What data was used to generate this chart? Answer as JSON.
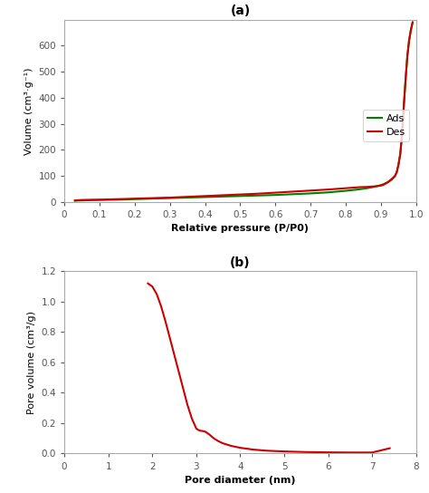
{
  "panel_a": {
    "title": "(a)",
    "xlabel": "Relative pressure (P/P0)",
    "ylabel": "Volume (cm³·g⁻¹)",
    "xlim": [
      0,
      1.0
    ],
    "ylim": [
      0,
      700
    ],
    "yticks": [
      0,
      100,
      200,
      300,
      400,
      500,
      600
    ],
    "xticks": [
      0,
      0.1,
      0.2,
      0.3,
      0.4,
      0.5,
      0.6,
      0.7,
      0.8,
      0.9,
      1.0
    ],
    "ads_color": "#008000",
    "des_color": "#cc0000",
    "ads_label": "Ads",
    "des_label": "Des",
    "line_width": 1.5,
    "ads_x": [
      0.03,
      0.05,
      0.1,
      0.15,
      0.18,
      0.2,
      0.25,
      0.3,
      0.35,
      0.4,
      0.45,
      0.5,
      0.55,
      0.6,
      0.65,
      0.7,
      0.75,
      0.8,
      0.82,
      0.84,
      0.86,
      0.88,
      0.9,
      0.91,
      0.92,
      0.93,
      0.94,
      0.945,
      0.95,
      0.955,
      0.96,
      0.965,
      0.97,
      0.975,
      0.98,
      0.985,
      0.99
    ],
    "ads_y": [
      5,
      6,
      8,
      9,
      10,
      11,
      13,
      15,
      17,
      19,
      21,
      23,
      25,
      27,
      30,
      33,
      37,
      43,
      46,
      49,
      53,
      58,
      65,
      70,
      77,
      85,
      100,
      115,
      145,
      185,
      260,
      370,
      470,
      560,
      620,
      660,
      690
    ],
    "des_x": [
      0.99,
      0.985,
      0.98,
      0.975,
      0.97,
      0.965,
      0.96,
      0.955,
      0.95,
      0.945,
      0.94,
      0.93,
      0.925,
      0.92,
      0.915,
      0.91,
      0.905,
      0.9,
      0.895,
      0.89,
      0.88,
      0.87,
      0.86,
      0.84,
      0.82,
      0.8,
      0.75,
      0.7,
      0.65,
      0.6,
      0.55,
      0.5,
      0.45,
      0.4,
      0.35,
      0.3,
      0.25,
      0.2,
      0.18,
      0.15,
      0.1,
      0.05,
      0.03
    ],
    "des_y": [
      690,
      660,
      620,
      560,
      470,
      370,
      260,
      185,
      145,
      115,
      100,
      88,
      82,
      76,
      72,
      68,
      65,
      63,
      62,
      61,
      60,
      59,
      58,
      57,
      55,
      53,
      48,
      44,
      40,
      36,
      32,
      29,
      26,
      23,
      20,
      17,
      15,
      13,
      12,
      11,
      9,
      8,
      6
    ]
  },
  "panel_b": {
    "title": "(b)",
    "xlabel": "Pore diameter (nm)",
    "ylabel": "Pore volume (cm³/g)",
    "xlim": [
      0,
      8
    ],
    "ylim": [
      0,
      1.2
    ],
    "yticks": [
      0.0,
      0.2,
      0.4,
      0.6,
      0.8,
      1.0,
      1.2
    ],
    "xticks": [
      0,
      1,
      2,
      3,
      4,
      5,
      6,
      7,
      8
    ],
    "line_color": "#cc0000",
    "line_width": 1.5,
    "bjh_x": [
      1.9,
      2.0,
      2.1,
      2.2,
      2.3,
      2.4,
      2.5,
      2.6,
      2.7,
      2.8,
      2.9,
      3.0,
      3.05,
      3.1,
      3.15,
      3.2,
      3.3,
      3.4,
      3.5,
      3.6,
      3.8,
      4.0,
      4.3,
      4.6,
      5.0,
      5.5,
      6.0,
      6.5,
      7.0,
      7.4
    ],
    "bjh_y": [
      1.12,
      1.1,
      1.05,
      0.97,
      0.87,
      0.76,
      0.65,
      0.54,
      0.43,
      0.32,
      0.23,
      0.165,
      0.155,
      0.15,
      0.148,
      0.145,
      0.125,
      0.1,
      0.082,
      0.068,
      0.05,
      0.038,
      0.026,
      0.019,
      0.014,
      0.01,
      0.008,
      0.007,
      0.007,
      0.035
    ]
  },
  "background_color": "#ffffff",
  "figure_background": "#ffffff",
  "spine_color": "#aaaaaa"
}
